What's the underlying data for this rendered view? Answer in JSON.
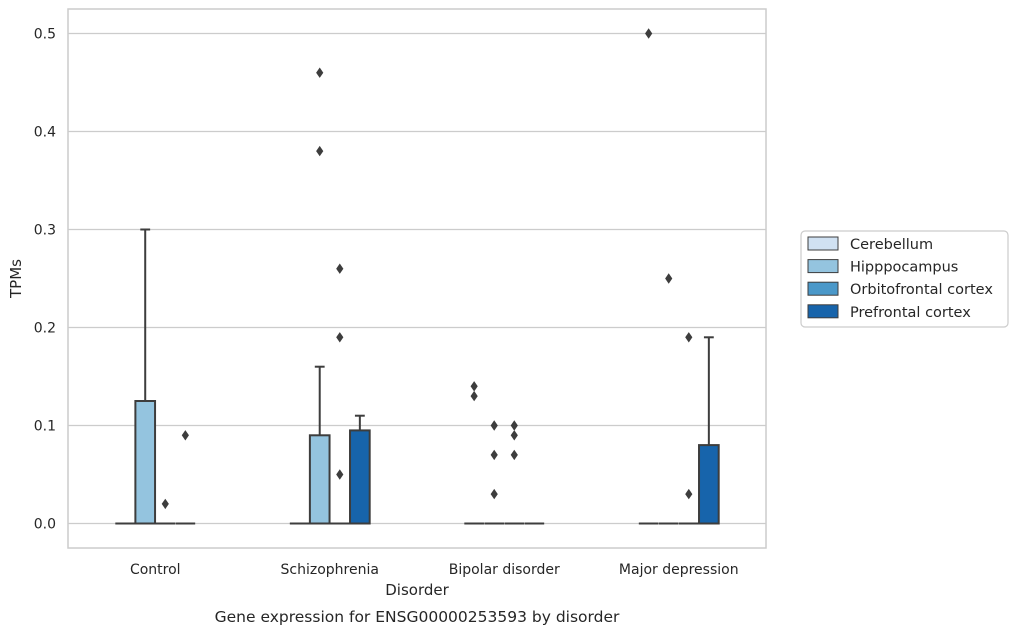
{
  "chart_data": {
    "type": "box",
    "caption": "Gene expression for ENSG00000253593 by disorder",
    "xlabel": "Disorder",
    "ylabel": "TPMs",
    "ylim": [
      -0.025,
      0.525
    ],
    "yticks": [
      0.0,
      0.1,
      0.2,
      0.3,
      0.4,
      0.5
    ],
    "ytick_labels": [
      "0.0",
      "0.1",
      "0.2",
      "0.3",
      "0.4",
      "0.5"
    ],
    "grid": true,
    "legend_position": "right",
    "categories": [
      "Control",
      "Schizophrenia",
      "Bipolar disorder",
      "Major depression"
    ],
    "series": [
      {
        "name": "Cerebellum",
        "color": "#d0e1f2",
        "boxes": [
          {
            "q1": 0,
            "median": 0,
            "q3": 0,
            "whisker_low": 0,
            "whisker_high": 0,
            "outliers": []
          },
          {
            "q1": 0,
            "median": 0,
            "q3": 0,
            "whisker_low": 0,
            "whisker_high": 0,
            "outliers": []
          },
          {
            "q1": 0,
            "median": 0,
            "q3": 0,
            "whisker_low": 0,
            "whisker_high": 0,
            "outliers": [
              0.14,
              0.13
            ]
          },
          {
            "q1": 0,
            "median": 0,
            "q3": 0,
            "whisker_low": 0,
            "whisker_high": 0,
            "outliers": [
              0.5
            ]
          }
        ]
      },
      {
        "name": "Hipppocampus",
        "color": "#94c4df",
        "boxes": [
          {
            "q1": 0,
            "median": 0,
            "q3": 0.125,
            "whisker_low": 0,
            "whisker_high": 0.3,
            "outliers": []
          },
          {
            "q1": 0,
            "median": 0,
            "q3": 0.09,
            "whisker_low": 0,
            "whisker_high": 0.16,
            "outliers": [
              0.46,
              0.38
            ]
          },
          {
            "q1": 0,
            "median": 0,
            "q3": 0,
            "whisker_low": 0,
            "whisker_high": 0,
            "outliers": [
              0.1,
              0.07,
              0.03
            ]
          },
          {
            "q1": 0,
            "median": 0,
            "q3": 0,
            "whisker_low": 0,
            "whisker_high": 0,
            "outliers": [
              0.25
            ]
          }
        ]
      },
      {
        "name": "Orbitofrontal cortex",
        "color": "#4a98c9",
        "boxes": [
          {
            "q1": 0,
            "median": 0,
            "q3": 0,
            "whisker_low": 0,
            "whisker_high": 0,
            "outliers": [
              0.02
            ]
          },
          {
            "q1": 0,
            "median": 0,
            "q3": 0,
            "whisker_low": 0,
            "whisker_high": 0,
            "outliers": [
              0.26,
              0.19,
              0.05
            ]
          },
          {
            "q1": 0,
            "median": 0,
            "q3": 0,
            "whisker_low": 0,
            "whisker_high": 0,
            "outliers": [
              0.1,
              0.09,
              0.07
            ]
          },
          {
            "q1": 0,
            "median": 0,
            "q3": 0,
            "whisker_low": 0,
            "whisker_high": 0,
            "outliers": [
              0.19,
              0.03
            ]
          }
        ]
      },
      {
        "name": "Prefrontal cortex",
        "color": "#1764ab",
        "boxes": [
          {
            "q1": 0,
            "median": 0,
            "q3": 0,
            "whisker_low": 0,
            "whisker_high": 0,
            "outliers": [
              0.09
            ]
          },
          {
            "q1": 0,
            "median": 0,
            "q3": 0.095,
            "whisker_low": 0,
            "whisker_high": 0.11,
            "outliers": []
          },
          {
            "q1": 0,
            "median": 0,
            "q3": 0,
            "whisker_low": 0,
            "whisker_high": 0,
            "outliers": []
          },
          {
            "q1": 0,
            "median": 0,
            "q3": 0.08,
            "whisker_low": 0,
            "whisker_high": 0.19,
            "outliers": []
          }
        ]
      }
    ]
  }
}
